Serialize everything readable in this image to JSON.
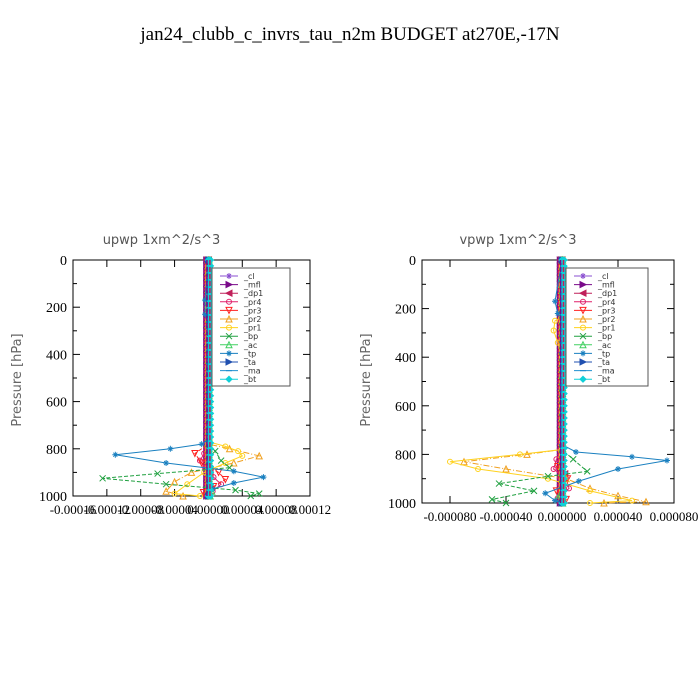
{
  "page": {
    "title": "jan24_clubb_c_invrs_tau_n2m  BUDGET at270E,-17N"
  },
  "chart_data": [
    {
      "type": "line",
      "title": "upwp   1xm^2/s^3",
      "ylabel": "Pressure [hPa]",
      "ylim": [
        1000,
        0
      ],
      "xlim": [
        -0.00016,
        0.00012
      ],
      "yticks": [
        "0",
        "200",
        "400",
        "600",
        "800",
        "1000"
      ],
      "xticks": [
        "-0.00016",
        "-0.00012",
        "-0.00008",
        "-0.00004",
        "0.00000",
        "0.00004",
        "0.00008",
        "0.00012"
      ],
      "legend_position": "upper-right",
      "series": [
        {
          "name": "_cl",
          "color": "#8a4fd0",
          "marker": "star",
          "values": [
            [
              0,
              0
            ],
            [
              0,
              200
            ],
            [
              0,
              400
            ],
            [
              0,
              600
            ],
            [
              0,
              780
            ],
            [
              0,
              860
            ],
            [
              0,
              940
            ],
            [
              0,
              1000
            ]
          ]
        },
        {
          "name": "_mfl",
          "color": "#7a0a8a",
          "marker": "tri-right",
          "values": [
            [
              0,
              0
            ],
            [
              0,
              200
            ],
            [
              0,
              400
            ],
            [
              0,
              600
            ],
            [
              0,
              780
            ],
            [
              0,
              860
            ],
            [
              0,
              940
            ],
            [
              0,
              1000
            ]
          ]
        },
        {
          "name": "_dp1",
          "color": "#c0205a",
          "marker": "tri-left",
          "values": [
            [
              0,
              0
            ],
            [
              0,
              200
            ],
            [
              0,
              400
            ],
            [
              0,
              600
            ],
            [
              0,
              800
            ],
            [
              2e-06,
              900
            ],
            [
              2e-06,
              960
            ],
            [
              0,
              1000
            ]
          ]
        },
        {
          "name": "_pr4",
          "color": "#e0206a",
          "marker": "circle",
          "values": [
            [
              0,
              0
            ],
            [
              0,
              400
            ],
            [
              0,
              780
            ],
            [
              -5e-06,
              820
            ],
            [
              -1e-05,
              850
            ],
            [
              -4e-06,
              880
            ],
            [
              6e-06,
              920
            ],
            [
              1.5e-05,
              950
            ],
            [
              5e-06,
              980
            ],
            [
              0,
              1000
            ]
          ]
        },
        {
          "name": "_pr3",
          "color": "#ff2020",
          "marker": "tri-down",
          "values": [
            [
              0,
              0
            ],
            [
              0,
              780
            ],
            [
              -1.6e-05,
              820
            ],
            [
              -8e-06,
              860
            ],
            [
              1.2e-05,
              900
            ],
            [
              2e-05,
              930
            ],
            [
              6e-06,
              960
            ],
            [
              -6e-06,
              985
            ],
            [
              0,
              1000
            ]
          ]
        },
        {
          "name": "_pr2",
          "color": "#f0a020",
          "marker": "tri-up",
          "values": [
            [
              0,
              0
            ],
            [
              0,
              780
            ],
            [
              2.5e-05,
              800
            ],
            [
              6e-05,
              830
            ],
            [
              3e-05,
              860
            ],
            [
              -2e-05,
              900
            ],
            [
              -4e-05,
              940
            ],
            [
              -5e-05,
              980
            ],
            [
              -3e-05,
              1000
            ]
          ]
        },
        {
          "name": "_pr1",
          "color": "#ffd21e",
          "marker": "circle",
          "values": [
            [
              0,
              0
            ],
            [
              2e-06,
              150
            ],
            [
              2e-06,
              210
            ],
            [
              0,
              260
            ],
            [
              0,
              770
            ],
            [
              2e-05,
              790
            ],
            [
              3.5e-05,
              810
            ],
            [
              4e-05,
              830
            ],
            [
              2e-05,
              860
            ],
            [
              -5e-06,
              900
            ],
            [
              -2.5e-05,
              950
            ],
            [
              -4e-05,
              990
            ],
            [
              -1e-05,
              1000
            ]
          ]
        },
        {
          "name": "_bp",
          "color": "#20a040",
          "marker": "x",
          "values": [
            [
              0,
              0
            ],
            [
              0,
              780
            ],
            [
              8e-06,
              810
            ],
            [
              1.5e-05,
              850
            ],
            [
              2.5e-05,
              880
            ],
            [
              -6e-05,
              905
            ],
            [
              -0.000125,
              925
            ],
            [
              -5e-05,
              950
            ],
            [
              3.2e-05,
              975
            ],
            [
              6e-05,
              990
            ],
            [
              5e-05,
              1000
            ]
          ]
        },
        {
          "name": "_ac",
          "color": "#40d060",
          "marker": "tri-up",
          "values": [
            [
              0,
              0
            ],
            [
              0,
              950
            ],
            [
              4e-06,
              980
            ],
            [
              2e-06,
              1000
            ]
          ]
        },
        {
          "name": "_tp",
          "color": "#1a80c0",
          "marker": "star",
          "values": [
            [
              0,
              0
            ],
            [
              -4e-06,
              170
            ],
            [
              -4e-06,
              230
            ],
            [
              0,
              280
            ],
            [
              0,
              760
            ],
            [
              -8e-06,
              780
            ],
            [
              -4.5e-05,
              800
            ],
            [
              -0.00011,
              825
            ],
            [
              -5e-05,
              860
            ],
            [
              3e-05,
              895
            ],
            [
              6.5e-05,
              920
            ],
            [
              3e-05,
              945
            ],
            [
              5e-06,
              970
            ],
            [
              0,
              1000
            ]
          ]
        },
        {
          "name": "_ta",
          "color": "#2050b0",
          "marker": "tri-right",
          "values": [
            [
              0,
              0
            ],
            [
              0,
              1000
            ]
          ]
        },
        {
          "name": "_ma",
          "color": "#2090d0",
          "marker": "dash",
          "values": [
            [
              0,
              0
            ],
            [
              0,
              1000
            ]
          ]
        },
        {
          "name": "_bt",
          "color": "#10d0d8",
          "marker": "diamond",
          "values": [
            [
              0,
              0
            ],
            [
              0,
              1000
            ]
          ]
        }
      ]
    },
    {
      "type": "line",
      "title": "vpwp   1xm^2/s^3",
      "ylabel": "Pressure [hPa]",
      "ylim": [
        1000,
        0
      ],
      "xlim": [
        -0.0001,
        8e-05
      ],
      "yticks": [
        "0",
        "200",
        "400",
        "600",
        "800",
        "1000"
      ],
      "xticks": [
        "-0.000080",
        "-0.000040",
        "0.000000",
        "0.000040",
        "0.000080"
      ],
      "legend_position": "upper-right",
      "series": [
        {
          "name": "_cl",
          "color": "#8a4fd0",
          "marker": "star",
          "values": [
            [
              0,
              0
            ],
            [
              0,
              200
            ],
            [
              0,
              400
            ],
            [
              0,
              600
            ],
            [
              0,
              780
            ],
            [
              0,
              860
            ],
            [
              0,
              940
            ],
            [
              0,
              1000
            ]
          ]
        },
        {
          "name": "_mfl",
          "color": "#7a0a8a",
          "marker": "tri-right",
          "values": [
            [
              0,
              0
            ],
            [
              0,
              200
            ],
            [
              0,
              400
            ],
            [
              0,
              600
            ],
            [
              0,
              780
            ],
            [
              0,
              860
            ],
            [
              0,
              940
            ],
            [
              0,
              1000
            ]
          ]
        },
        {
          "name": "_dp1",
          "color": "#c0205a",
          "marker": "tri-left",
          "values": [
            [
              0,
              0
            ],
            [
              0,
              400
            ],
            [
              0,
              780
            ],
            [
              2e-06,
              880
            ],
            [
              0,
              960
            ],
            [
              0,
              1000
            ]
          ]
        },
        {
          "name": "_pr4",
          "color": "#e0206a",
          "marker": "circle",
          "values": [
            [
              0,
              0
            ],
            [
              0,
              780
            ],
            [
              -4e-06,
              820
            ],
            [
              -6e-06,
              860
            ],
            [
              3e-06,
              900
            ],
            [
              5e-06,
              940
            ],
            [
              -3e-06,
              980
            ],
            [
              0,
              1000
            ]
          ]
        },
        {
          "name": "_pr3",
          "color": "#ff2020",
          "marker": "tri-down",
          "values": [
            [
              0,
              0
            ],
            [
              0,
              800
            ],
            [
              -3e-06,
              850
            ],
            [
              4e-06,
              900
            ],
            [
              -4e-06,
              950
            ],
            [
              3e-06,
              985
            ],
            [
              0,
              1000
            ]
          ]
        },
        {
          "name": "_pr2",
          "color": "#f0a020",
          "marker": "tri-up",
          "values": [
            [
              0,
              0
            ],
            [
              0,
              780
            ],
            [
              -2.5e-05,
              800
            ],
            [
              -7e-05,
              830
            ],
            [
              -4e-05,
              860
            ],
            [
              3e-06,
              900
            ],
            [
              2e-05,
              940
            ],
            [
              4e-05,
              970
            ],
            [
              6e-05,
              995
            ],
            [
              3e-05,
              1000
            ]
          ]
        },
        {
          "name": "_pr1",
          "color": "#ffd21e",
          "marker": "circle",
          "values": [
            [
              0,
              0
            ],
            [
              4e-06,
              140
            ],
            [
              6e-06,
              180
            ],
            [
              5e-06,
              220
            ],
            [
              -5e-06,
              250
            ],
            [
              -6e-06,
              290
            ],
            [
              -3e-06,
              340
            ],
            [
              0,
              400
            ],
            [
              0,
              780
            ],
            [
              -3e-05,
              800
            ],
            [
              -8e-05,
              830
            ],
            [
              -6e-05,
              860
            ],
            [
              -1e-05,
              900
            ],
            [
              2e-05,
              950
            ],
            [
              5e-05,
              990
            ],
            [
              2e-05,
              1000
            ]
          ]
        },
        {
          "name": "_bp",
          "color": "#20a040",
          "marker": "x",
          "values": [
            [
              0,
              0
            ],
            [
              0,
              780
            ],
            [
              8e-06,
              820
            ],
            [
              1.8e-05,
              870
            ],
            [
              -1e-05,
              890
            ],
            [
              -4.5e-05,
              920
            ],
            [
              -2e-05,
              950
            ],
            [
              -5e-05,
              985
            ],
            [
              -4e-05,
              1000
            ]
          ]
        },
        {
          "name": "_ac",
          "color": "#40d060",
          "marker": "tri-up",
          "values": [
            [
              0,
              0
            ],
            [
              0,
              950
            ],
            [
              -3e-06,
              980
            ],
            [
              0,
              1000
            ]
          ]
        },
        {
          "name": "_tp",
          "color": "#1a80c0",
          "marker": "star",
          "values": [
            [
              0,
              0
            ],
            [
              -5e-06,
              170
            ],
            [
              -3e-06,
              220
            ],
            [
              3e-06,
              260
            ],
            [
              2e-06,
              320
            ],
            [
              0,
              380
            ],
            [
              0,
              760
            ],
            [
              1e-05,
              790
            ],
            [
              5e-05,
              810
            ],
            [
              7.5e-05,
              825
            ],
            [
              4e-05,
              860
            ],
            [
              1.2e-05,
              910
            ],
            [
              -1.2e-05,
              960
            ],
            [
              -5e-06,
              990
            ],
            [
              0,
              1000
            ]
          ]
        },
        {
          "name": "_ta",
          "color": "#2050b0",
          "marker": "tri-right",
          "values": [
            [
              0,
              0
            ],
            [
              0,
              1000
            ]
          ]
        },
        {
          "name": "_ma",
          "color": "#2090d0",
          "marker": "dash",
          "values": [
            [
              0,
              0
            ],
            [
              0,
              1000
            ]
          ]
        },
        {
          "name": "_bt",
          "color": "#10d0d8",
          "marker": "diamond",
          "values": [
            [
              0,
              0
            ],
            [
              0,
              1000
            ]
          ]
        }
      ]
    }
  ]
}
